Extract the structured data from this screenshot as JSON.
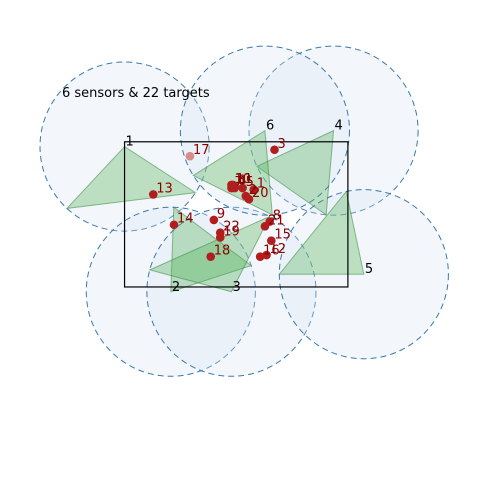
{
  "title": "6 sensors & 22 targets",
  "colors": {
    "circle_fill": "#d6e4f2",
    "circle_stroke": "#3a78b0",
    "sector_fill": "#4caf50",
    "sector_stroke": "#2e7d32",
    "target": "#b21e1e",
    "target_faded": "#d98c8c",
    "region_stroke": "#000000"
  },
  "sensors": [
    {
      "label": "1",
      "x": 0.0,
      "y": 4.4
    },
    {
      "label": "2",
      "x": 1.45,
      "y": -0.15
    },
    {
      "label": "3",
      "x": 3.35,
      "y": -0.15
    },
    {
      "label": "4",
      "x": 6.55,
      "y": 4.9
    },
    {
      "label": "5",
      "x": 7.5,
      "y": 0.4
    },
    {
      "label": "6",
      "x": 4.4,
      "y": 4.9
    }
  ],
  "targets": [
    {
      "label": "1",
      "x": 4.05,
      "y": 3.05
    },
    {
      "label": "2",
      "x": 3.8,
      "y": 2.85
    },
    {
      "label": "3",
      "x": 4.7,
      "y": 4.3
    },
    {
      "label": "4",
      "x": 3.45,
      "y": 3.1
    },
    {
      "label": "5",
      "x": 3.7,
      "y": 3.1
    },
    {
      "label": "6",
      "x": 3.45,
      "y": 3.15
    },
    {
      "label": "7",
      "x": 3.35,
      "y": 3.1
    },
    {
      "label": "8",
      "x": 4.55,
      "y": 2.05
    },
    {
      "label": "9",
      "x": 2.8,
      "y": 2.1
    },
    {
      "label": "10",
      "x": 3.35,
      "y": 3.2
    },
    {
      "label": "11",
      "x": 3.4,
      "y": 3.2
    },
    {
      "label": "12",
      "x": 4.45,
      "y": 1.0
    },
    {
      "label": "13",
      "x": 0.9,
      "y": 2.9
    },
    {
      "label": "14",
      "x": 1.55,
      "y": 1.95
    },
    {
      "label": "15",
      "x": 4.6,
      "y": 1.45
    },
    {
      "label": "16",
      "x": 4.25,
      "y": 0.95
    },
    {
      "label": "17",
      "x": 2.05,
      "y": 4.1,
      "faded": true
    },
    {
      "label": "18",
      "x": 2.7,
      "y": 0.95
    },
    {
      "label": "19",
      "x": 3.0,
      "y": 1.55
    },
    {
      "label": "20",
      "x": 3.9,
      "y": 2.75
    },
    {
      "label": "21",
      "x": 4.4,
      "y": 1.9
    },
    {
      "label": "22",
      "x": 3.0,
      "y": 1.7
    }
  ],
  "region": {
    "x": [
      0.0,
      7.0
    ],
    "y": [
      0.0,
      4.55
    ]
  },
  "sensing_radius": 2.65,
  "sectors": [
    {
      "sensor": "1",
      "start_deg": 227,
      "end_deg": 327
    },
    {
      "sensor": "2",
      "start_deg": 18,
      "end_deg": 88
    },
    {
      "sensor": "3",
      "start_deg": 63,
      "end_deg": 165
    },
    {
      "sensor": "4",
      "start_deg": 205,
      "end_deg": 265
    },
    {
      "sensor": "5",
      "start_deg": 102,
      "end_deg": 180
    },
    {
      "sensor": "6",
      "start_deg": 212,
      "end_deg": 275
    }
  ],
  "view": {
    "xlim": [
      -2.65,
      10.2
    ],
    "ylim": [
      -6.05,
      7.1
    ]
  }
}
